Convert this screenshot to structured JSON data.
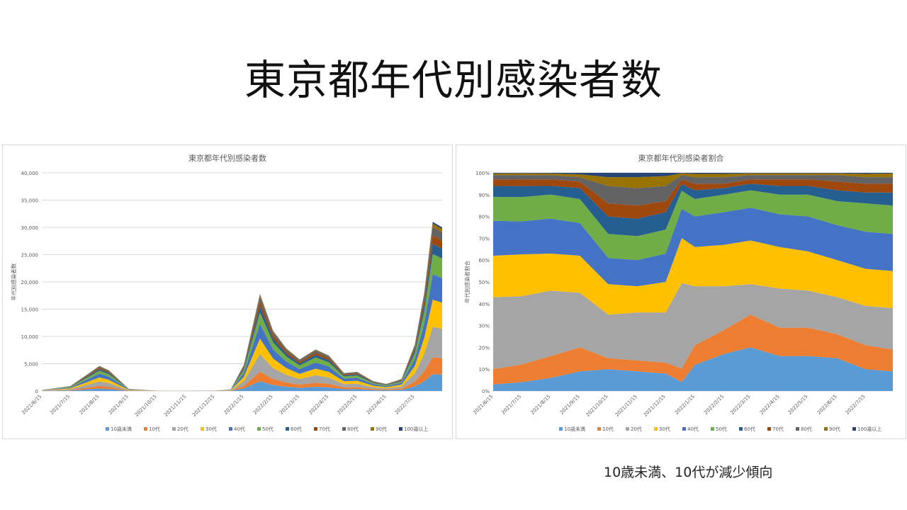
{
  "slide": {
    "title": "東京都年代別感染者数",
    "caption": "10歳未満、10代が減少傾向"
  },
  "colors": [
    "#5b9bd5",
    "#ed7d31",
    "#a5a5a5",
    "#ffc000",
    "#4472c4",
    "#70ad47",
    "#255e91",
    "#9e480e",
    "#636363",
    "#997300",
    "#264478"
  ],
  "legend_labels": [
    "10歳未満",
    "10代",
    "20代",
    "30代",
    "40代",
    "50代",
    "60代",
    "70代",
    "80代",
    "90代",
    "100歳以上"
  ],
  "x_dates": [
    "2021/6/15",
    "2021/7/15",
    "2021/8/15",
    "2021/9/15",
    "2021/10/15",
    "2021/11/15",
    "2021/12/15",
    "2022/1/15",
    "2022/2/15",
    "2022/3/15",
    "2022/4/15",
    "2022/5/15",
    "2022/6/15",
    "2022/7/15"
  ],
  "chart_data": [
    {
      "type": "area",
      "stacked": true,
      "title": "東京都年代別感染者数",
      "ylabel": "年代別感染者数",
      "xlabel": "",
      "ylim": [
        0,
        40000
      ],
      "y_ticks": [
        "0",
        "5,000",
        "10,000",
        "15,000",
        "20,000",
        "25,000",
        "30,000",
        "35,000",
        "40,000"
      ],
      "grid": true,
      "legend_position": "bottom",
      "x": [
        "2021/6/15",
        "2021/7/15",
        "2021/8/1",
        "2021/8/15",
        "2021/8/25",
        "2021/9/15",
        "2021/10/15",
        "2021/11/15",
        "2021/12/15",
        "2022/1/1",
        "2022/1/15",
        "2022/2/1",
        "2022/2/15",
        "2022/3/1",
        "2022/3/15",
        "2022/4/1",
        "2022/4/15",
        "2022/5/1",
        "2022/5/15",
        "2022/6/1",
        "2022/6/15",
        "2022/7/1",
        "2022/7/15",
        "2022/7/25",
        "2022/8/3",
        "2022/8/13"
      ],
      "totals": [
        200,
        900,
        2900,
        4600,
        3800,
        400,
        50,
        30,
        60,
        300,
        4800,
        17800,
        11000,
        7800,
        5800,
        7600,
        6500,
        3300,
        3500,
        1800,
        1300,
        2200,
        8500,
        18000,
        31000,
        30000
      ]
    },
    {
      "type": "area",
      "stacked": true,
      "percent": true,
      "title": "東京都年代別感染者割合",
      "ylabel": "年代別感染者割合",
      "xlabel": "",
      "ylim": [
        0,
        100
      ],
      "y_ticks": [
        "0%",
        "10%",
        "20%",
        "30%",
        "40%",
        "50%",
        "60%",
        "70%",
        "80%",
        "90%",
        "100%"
      ],
      "grid": true,
      "legend_position": "bottom",
      "x": [
        "2021/6/15",
        "2021/7/15",
        "2021/8/15",
        "2021/9/15",
        "2021/10/15",
        "2021/11/15",
        "2021/12/15",
        "2022/1/1",
        "2022/1/15",
        "2022/2/15",
        "2022/3/15",
        "2022/4/15",
        "2022/5/15",
        "2022/6/15",
        "2022/7/15",
        "2022/8/13"
      ],
      "series": [
        {
          "name": "10歳未満",
          "values": [
            3,
            4,
            6,
            9,
            10,
            9,
            8,
            4,
            12,
            17,
            20,
            16,
            16,
            15,
            10,
            9
          ]
        },
        {
          "name": "10代",
          "values": [
            7,
            8,
            10,
            11,
            5,
            5,
            5,
            6,
            9,
            11,
            15,
            13,
            13,
            11,
            11,
            10
          ]
        },
        {
          "name": "20代",
          "values": [
            33,
            31,
            30,
            25,
            20,
            22,
            23,
            38,
            27,
            20,
            14,
            18,
            17,
            17,
            18,
            19
          ]
        },
        {
          "name": "30代",
          "values": [
            19,
            19,
            17,
            17,
            14,
            12,
            14,
            20,
            18,
            19,
            20,
            19,
            18,
            17,
            17,
            17
          ]
        },
        {
          "name": "40代",
          "values": [
            16,
            15,
            16,
            15,
            12,
            12,
            13,
            13,
            14,
            15,
            15,
            15,
            16,
            16,
            17,
            17
          ]
        },
        {
          "name": "50代",
          "values": [
            11,
            11,
            11,
            11,
            11,
            11,
            11,
            8,
            8,
            8,
            8,
            9,
            10,
            11,
            13,
            13
          ]
        },
        {
          "name": "60代",
          "values": [
            5,
            5,
            4,
            5,
            8,
            8,
            8,
            3,
            4,
            3,
            3,
            4,
            4,
            5,
            5,
            6
          ]
        },
        {
          "name": "70代",
          "values": [
            3,
            3,
            3,
            3,
            6,
            6,
            5,
            2,
            3,
            2,
            2,
            3,
            3,
            4,
            4,
            4
          ]
        },
        {
          "name": "80代",
          "values": [
            2,
            2,
            2,
            2,
            8,
            8,
            7,
            2,
            3,
            3,
            2,
            2,
            2,
            3,
            3,
            3
          ]
        },
        {
          "name": "90代",
          "values": [
            0.7,
            0.8,
            0.7,
            1.3,
            4,
            5,
            4.5,
            0.8,
            1.5,
            1.5,
            0.8,
            0.8,
            0.8,
            0.8,
            1.5,
            1.7
          ]
        },
        {
          "name": "100歳以上",
          "values": [
            0.3,
            0.2,
            0.3,
            0.7,
            2,
            2,
            1.5,
            0.2,
            0.5,
            0.5,
            0.2,
            0.2,
            0.2,
            0.2,
            0.5,
            0.3
          ]
        }
      ]
    }
  ]
}
